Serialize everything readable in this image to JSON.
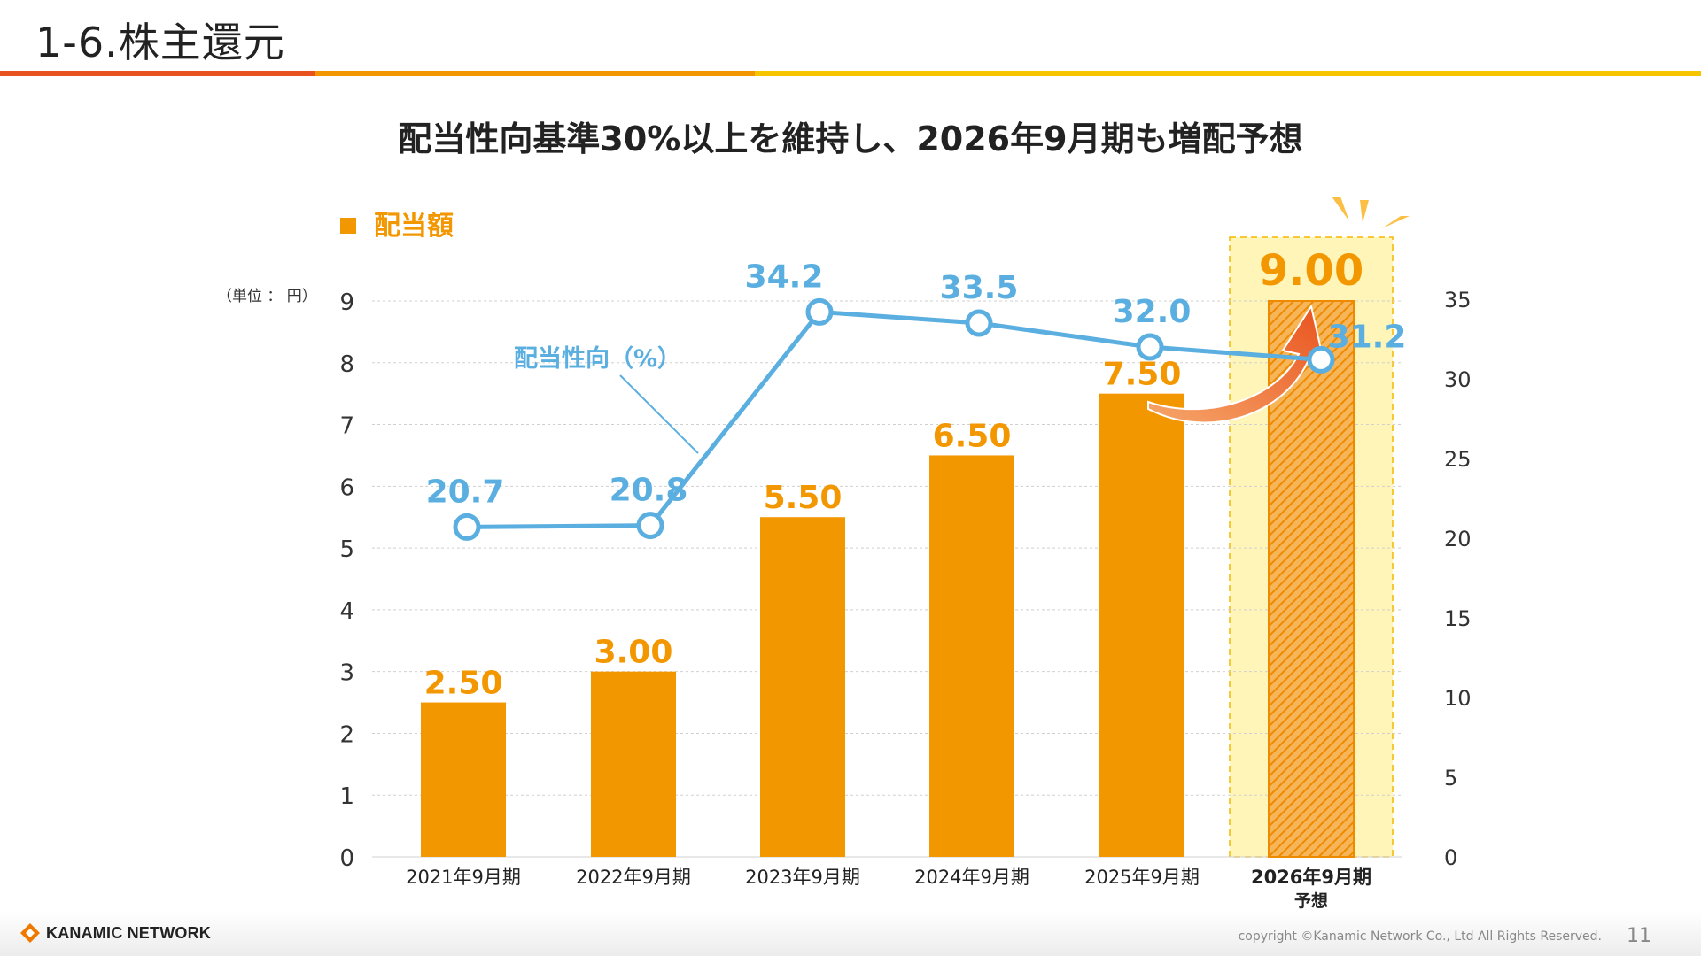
{
  "header": {
    "title": "1-6.株主還元",
    "colors": [
      "#e9531f",
      "#f39700",
      "#f7c400"
    ]
  },
  "subtitle": "配当性向基準30%以上を維持し、2026年9月期も増配予想",
  "footer": {
    "logo_text": "KANAMIC NETWORK",
    "copyright": "copyright ©Kanamic Network Co., Ltd All Rights Reserved.",
    "page_number": "11"
  },
  "chart_data": {
    "type": "bar",
    "legend": "配当額",
    "unit_label": "（単位 ： 円）",
    "categories": [
      "2021年9月期",
      "2022年9月期",
      "2023年9月期",
      "2024年9月期",
      "2025年9月期",
      "2026年9月期"
    ],
    "forecast_category_note": "予想",
    "forecast_index": 5,
    "series": [
      {
        "name": "配当額",
        "axis": "left",
        "values": [
          2.5,
          3.0,
          5.5,
          6.5,
          7.5,
          9.0
        ],
        "labels": [
          "2.50",
          "3.00",
          "5.50",
          "6.50",
          "7.50",
          "9.00"
        ],
        "color": "#f39700"
      },
      {
        "name": "配当性向（%）",
        "type": "line",
        "axis": "right",
        "values": [
          20.7,
          20.8,
          34.2,
          33.5,
          32.0,
          31.2
        ],
        "labels": [
          "20.7",
          "20.8",
          "34.2",
          "33.5",
          "32.0",
          "31.2"
        ],
        "color": "#5aafe0"
      }
    ],
    "ylim_left": [
      0,
      9
    ],
    "yticks_left": [
      "0",
      "1",
      "2",
      "3",
      "4",
      "5",
      "6",
      "7",
      "8",
      "9"
    ],
    "ylim_right": [
      0,
      35
    ],
    "yticks_right": [
      "0",
      "5",
      "10",
      "15",
      "20",
      "25",
      "30",
      "35"
    ],
    "grid": true,
    "highlight_color": "#fff5b8",
    "arrow_color": "#ee6c2a"
  }
}
